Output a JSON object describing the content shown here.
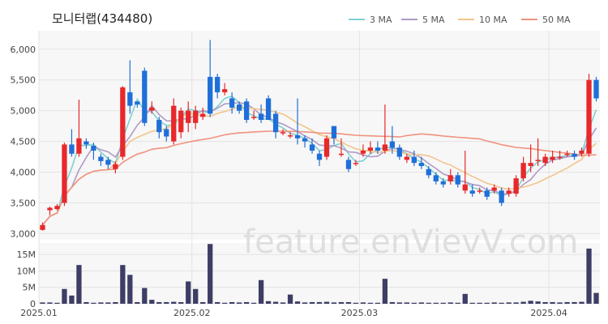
{
  "chart_data": {
    "type": "candlestick",
    "title": "모니터랩(434480)",
    "watermark": "feature.enVievV.com",
    "legend": [
      {
        "name": "3 MA",
        "color": "#7fd1cf"
      },
      {
        "name": "5 MA",
        "color": "#b09ac7"
      },
      {
        "name": "10 MA",
        "color": "#f2c58a"
      },
      {
        "name": "50 MA",
        "color": "#f0937e"
      }
    ],
    "colors": {
      "up": "#e8282b",
      "down": "#1f6fd8",
      "volume": "#3d3d66"
    },
    "price_axis": {
      "min": 2900,
      "max": 6300,
      "ticks": [
        "3,000",
        "3,500",
        "4,000",
        "4,500",
        "5,000",
        "5,500",
        "6,000"
      ]
    },
    "volume_axis": {
      "max": 18500000,
      "ticks": [
        "0",
        "5M",
        "10M",
        "15M"
      ]
    },
    "x_ticks": [
      {
        "label": "2025.01",
        "index": 0
      },
      {
        "label": "2025.02",
        "index": 21
      },
      {
        "label": "2025.03",
        "index": 44
      },
      {
        "label": "2025.04",
        "index": 70
      }
    ],
    "candles": [
      [
        3060,
        3140,
        3050,
        3180,
        0.4
      ],
      [
        3380,
        3420,
        3300,
        3440,
        0.4
      ],
      [
        3400,
        3450,
        3380,
        3480,
        0.3
      ],
      [
        3500,
        4450,
        3450,
        4480,
        4.5
      ],
      [
        4450,
        4300,
        4250,
        4700,
        2.5
      ],
      [
        4300,
        4550,
        4250,
        5180,
        11.8
      ],
      [
        4500,
        4450,
        4380,
        4550,
        0.5
      ],
      [
        4430,
        4350,
        4200,
        4480,
        0.3
      ],
      [
        4250,
        4180,
        4100,
        4300,
        0.4
      ],
      [
        4200,
        4120,
        4050,
        4250,
        0.4
      ],
      [
        4050,
        4130,
        3980,
        4180,
        0.5
      ],
      [
        4250,
        5380,
        4200,
        5400,
        11.8
      ],
      [
        5300,
        5080,
        4950,
        5820,
        8.8
      ],
      [
        5150,
        5100,
        5050,
        5150,
        0.5
      ],
      [
        5650,
        4800,
        4750,
        5700,
        4.8
      ],
      [
        5000,
        5050,
        4950,
        5150,
        1.2
      ],
      [
        4850,
        4650,
        4550,
        4900,
        0.5
      ],
      [
        4700,
        4580,
        4500,
        4750,
        0.5
      ],
      [
        4500,
        5080,
        4450,
        5200,
        0.6
      ],
      [
        4650,
        5000,
        4550,
        5050,
        0.5
      ],
      [
        4800,
        5000,
        4650,
        5150,
        6.8
      ],
      [
        4800,
        5000,
        4700,
        5080,
        4.5
      ],
      [
        4900,
        4950,
        4850,
        5050,
        0.5
      ],
      [
        5550,
        4950,
        4900,
        6150,
        18.2
      ],
      [
        5550,
        5300,
        5200,
        5600,
        0.5
      ],
      [
        5300,
        5350,
        5250,
        5450,
        0.3
      ],
      [
        5200,
        5050,
        4950,
        5300,
        0.5
      ],
      [
        5100,
        5000,
        4950,
        5150,
        0.4
      ],
      [
        5150,
        4850,
        4800,
        5200,
        0.5
      ],
      [
        4900,
        4900,
        4850,
        5000,
        0.3
      ],
      [
        4950,
        4850,
        4800,
        5100,
        7.2
      ],
      [
        5200,
        4850,
        4850,
        5250,
        0.8
      ],
      [
        4950,
        4650,
        4550,
        5000,
        0.6
      ],
      [
        4650,
        4650,
        4600,
        4700,
        0.4
      ],
      [
        4600,
        4600,
        4550,
        4650,
        2.8
      ],
      [
        4600,
        4550,
        4450,
        5200,
        0.7
      ],
      [
        4550,
        4500,
        4400,
        4600,
        0.4
      ],
      [
        4450,
        4350,
        4300,
        4550,
        0.5
      ],
      [
        4300,
        4200,
        4100,
        4350,
        0.5
      ],
      [
        4250,
        4550,
        4200,
        4600,
        0.6
      ],
      [
        4750,
        4550,
        4450,
        4750,
        0.4
      ],
      [
        4300,
        4300,
        4250,
        4550,
        0.5
      ],
      [
        4200,
        4050,
        4000,
        4250,
        0.5
      ],
      [
        4150,
        4150,
        4100,
        4200,
        0.3
      ],
      [
        4300,
        4350,
        4250,
        4450,
        0.4
      ],
      [
        4350,
        4400,
        4300,
        4500,
        0.3
      ],
      [
        4400,
        4350,
        4300,
        4500,
        0.3
      ],
      [
        4350,
        4450,
        4300,
        5100,
        7.6
      ],
      [
        4500,
        4400,
        4300,
        4750,
        0.5
      ],
      [
        4400,
        4250,
        4200,
        4450,
        0.4
      ],
      [
        4200,
        4250,
        4150,
        4300,
        0.4
      ],
      [
        4250,
        4150,
        4100,
        4350,
        0.3
      ],
      [
        4150,
        4100,
        4050,
        4250,
        0.4
      ],
      [
        4050,
        3950,
        3900,
        4100,
        0.3
      ],
      [
        3950,
        3850,
        3800,
        4000,
        0.3
      ],
      [
        3850,
        3800,
        3750,
        3900,
        0.3
      ],
      [
        3850,
        3950,
        3800,
        4050,
        0.4
      ],
      [
        3950,
        3800,
        3750,
        4000,
        0.3
      ],
      [
        3700,
        3800,
        3650,
        4350,
        3.0
      ],
      [
        3700,
        3650,
        3600,
        3800,
        0.3
      ],
      [
        3700,
        3700,
        3650,
        3750,
        0.3
      ],
      [
        3700,
        3600,
        3550,
        3750,
        0.3
      ],
      [
        3700,
        3750,
        3650,
        3800,
        0.4
      ],
      [
        3700,
        3500,
        3450,
        3750,
        0.3
      ],
      [
        3650,
        3700,
        3600,
        3750,
        0.4
      ],
      [
        3650,
        3900,
        3600,
        3950,
        0.4
      ],
      [
        3900,
        4150,
        3850,
        4250,
        0.6
      ],
      [
        4100,
        4150,
        4000,
        4450,
        0.9
      ],
      [
        4200,
        4200,
        4100,
        4550,
        0.7
      ],
      [
        4150,
        4250,
        4100,
        4300,
        0.5
      ],
      [
        4200,
        4250,
        4150,
        4350,
        0.5
      ],
      [
        4250,
        4250,
        4200,
        4350,
        0.4
      ],
      [
        4300,
        4300,
        4250,
        4350,
        0.5
      ],
      [
        4300,
        4250,
        4200,
        4350,
        0.5
      ],
      [
        4300,
        4350,
        4250,
        4400,
        0.6
      ],
      [
        4300,
        5500,
        4250,
        5600,
        16.8
      ],
      [
        5500,
        5200,
        5150,
        5550,
        3.3
      ]
    ]
  }
}
